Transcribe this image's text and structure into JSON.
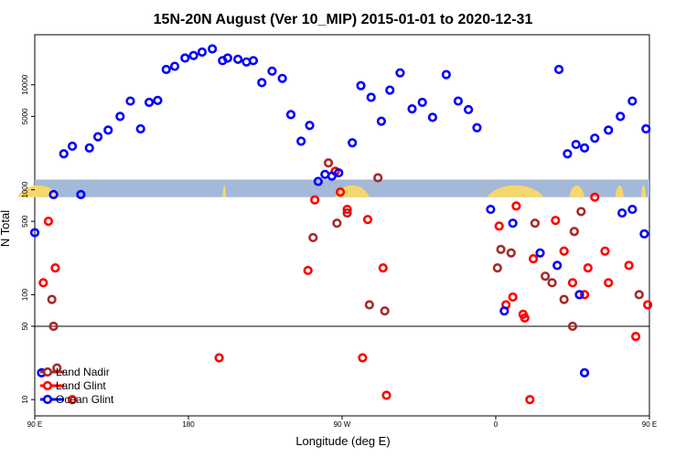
{
  "chart_data": {
    "type": "scatter",
    "title": "15N-20N August (Ver 10_MIP)   2015-01-01 to 2020-12-31",
    "xlabel": "Longitude (deg E)",
    "ylabel": "N Total",
    "xscale": "linear",
    "yscale": "log",
    "xlim": [
      90,
      450
    ],
    "ylim": [
      7,
      30000
    ],
    "x_ticks": [
      {
        "value": 90,
        "label": "90 E"
      },
      {
        "value": 180,
        "label": "180"
      },
      {
        "value": 270,
        "label": "90 W"
      },
      {
        "value": 360,
        "label": "0"
      },
      {
        "value": 450,
        "label": "90 E"
      },
      {
        "value": 540,
        "label": "180"
      }
    ],
    "y_ticks": [
      {
        "value": 10,
        "label": "10"
      },
      {
        "value": 50,
        "label": "50"
      },
      {
        "value": 100,
        "label": "100"
      },
      {
        "value": 500,
        "label": "500"
      },
      {
        "value": 1000,
        "label": "1000"
      },
      {
        "value": 5000,
        "label": "5000"
      },
      {
        "value": 10000,
        "label": "10000"
      }
    ],
    "reference_line": 50,
    "grid": false,
    "legend_position": "bottom-left",
    "land_band": {
      "y_low": 850,
      "y_high": 1250,
      "color": "#a4b8d8",
      "land_color": "#f5d76e"
    },
    "series": [
      {
        "name": "Land Nadir",
        "color": "#a52a2a",
        "points": [
          [
            101,
            50
          ],
          [
            100,
            90
          ],
          [
            103,
            20
          ],
          [
            253,
            350
          ],
          [
            262,
            1800
          ],
          [
            267,
            480
          ],
          [
            291,
            1300
          ],
          [
            273,
            600
          ],
          [
            286,
            80
          ],
          [
            295,
            70
          ],
          [
            363,
            270
          ],
          [
            369,
            250
          ],
          [
            383,
            480
          ],
          [
            389,
            150
          ],
          [
            393,
            130
          ],
          [
            400,
            90
          ],
          [
            405,
            50
          ],
          [
            406,
            400
          ],
          [
            410,
            620
          ],
          [
            444,
            100
          ],
          [
            452,
            50
          ],
          [
            454,
            20
          ],
          [
            361,
            180
          ]
        ]
      },
      {
        "name": "Land Glint",
        "color": "#ff0000",
        "points": [
          [
            98,
            500
          ],
          [
            95,
            130
          ],
          [
            102,
            180
          ],
          [
            112,
            10
          ],
          [
            198,
            25
          ],
          [
            250,
            170
          ],
          [
            254,
            800
          ],
          [
            266,
            1500
          ],
          [
            269,
            950
          ],
          [
            273,
            650
          ],
          [
            282,
            25
          ],
          [
            285,
            520
          ],
          [
            294,
            180
          ],
          [
            296,
            11
          ],
          [
            362,
            450
          ],
          [
            366,
            80
          ],
          [
            372,
            700
          ],
          [
            376,
            65
          ],
          [
            382,
            220
          ],
          [
            395,
            510
          ],
          [
            400,
            260
          ],
          [
            405,
            130
          ],
          [
            412,
            100
          ],
          [
            414,
            180
          ],
          [
            418,
            850
          ],
          [
            424,
            260
          ],
          [
            426,
            130
          ],
          [
            438,
            190
          ],
          [
            442,
            40
          ],
          [
            449,
            80
          ],
          [
            456,
            130
          ],
          [
            459,
            500
          ],
          [
            462,
            180
          ],
          [
            465,
            170
          ],
          [
            380,
            10
          ],
          [
            370,
            95
          ],
          [
            377,
            60
          ]
        ]
      },
      {
        "name": "Ocean Glint",
        "color": "#0000ff",
        "points": [
          [
            90,
            390
          ],
          [
            94,
            18
          ],
          [
            101,
            900
          ],
          [
            107,
            2200
          ],
          [
            112,
            2600
          ],
          [
            117,
            900
          ],
          [
            122,
            2500
          ],
          [
            127,
            3200
          ],
          [
            133,
            3700
          ],
          [
            140,
            5000
          ],
          [
            146,
            7000
          ],
          [
            152,
            3800
          ],
          [
            157,
            6800
          ],
          [
            162,
            7100
          ],
          [
            167,
            14000
          ],
          [
            172,
            15000
          ],
          [
            178,
            18000
          ],
          [
            183,
            19000
          ],
          [
            188,
            20500
          ],
          [
            194,
            22000
          ],
          [
            200,
            17000
          ],
          [
            203,
            18000
          ],
          [
            209,
            17500
          ],
          [
            214,
            16500
          ],
          [
            218,
            17000
          ],
          [
            223,
            10500
          ],
          [
            229,
            13500
          ],
          [
            235,
            11500
          ],
          [
            240,
            5200
          ],
          [
            246,
            2900
          ],
          [
            251,
            4100
          ],
          [
            256,
            1200
          ],
          [
            260,
            1400
          ],
          [
            264,
            1350
          ],
          [
            268,
            1450
          ],
          [
            276,
            2800
          ],
          [
            281,
            9800
          ],
          [
            287,
            7600
          ],
          [
            293,
            4500
          ],
          [
            298,
            8900
          ],
          [
            304,
            13000
          ],
          [
            311,
            5900
          ],
          [
            317,
            6800
          ],
          [
            323,
            4900
          ],
          [
            331,
            12500
          ],
          [
            338,
            7000
          ],
          [
            344,
            5800
          ],
          [
            349,
            3900
          ],
          [
            357,
            650
          ],
          [
            365,
            70
          ],
          [
            370,
            480
          ],
          [
            386,
            250
          ],
          [
            397,
            14000
          ],
          [
            402,
            2200
          ],
          [
            407,
            2700
          ],
          [
            412,
            2500
          ],
          [
            418,
            3100
          ],
          [
            426,
            3700
          ],
          [
            433,
            5000
          ],
          [
            440,
            7000
          ],
          [
            448,
            3800
          ],
          [
            455,
            6800
          ],
          [
            462,
            7100
          ],
          [
            470,
            14000
          ],
          [
            475,
            15000
          ],
          [
            480,
            18000
          ],
          [
            486,
            20500
          ],
          [
            396,
            190
          ],
          [
            409,
            100
          ],
          [
            412,
            18
          ],
          [
            434,
            600
          ],
          [
            440,
            650
          ],
          [
            447,
            380
          ]
        ]
      }
    ]
  }
}
